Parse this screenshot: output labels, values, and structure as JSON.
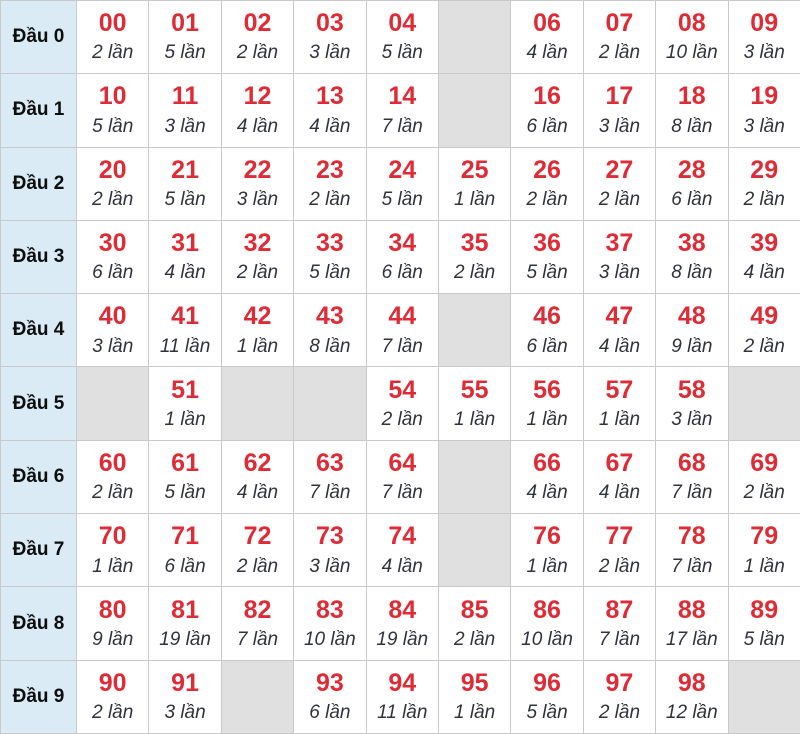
{
  "chart_data": {
    "type": "table",
    "description": "Lottery head-digit frequency table (Dau 0 - Dau 9), each cell shows a two-digit number and how many times it occurred",
    "row_header_prefix": "Đầu",
    "unit": "lần",
    "colors": {
      "number_red": "#df2b35",
      "count_text": "#30333b",
      "label_bg": "#daebf5",
      "empty_bg": "#e0e0e0",
      "border": "#c9c9c9"
    },
    "rows": [
      {
        "label": "Đầu 0",
        "cells": [
          {
            "number": "00",
            "count": 2,
            "text": "2 lần"
          },
          {
            "number": "01",
            "count": 5,
            "text": "5 lần"
          },
          {
            "number": "02",
            "count": 2,
            "text": "2 lần"
          },
          {
            "number": "03",
            "count": 3,
            "text": "3 lần"
          },
          {
            "number": "04",
            "count": 5,
            "text": "5 lần"
          },
          null,
          {
            "number": "06",
            "count": 4,
            "text": "4 lần"
          },
          {
            "number": "07",
            "count": 2,
            "text": "2 lần"
          },
          {
            "number": "08",
            "count": 10,
            "text": "10 lần"
          },
          {
            "number": "09",
            "count": 3,
            "text": "3 lần"
          }
        ]
      },
      {
        "label": "Đầu 1",
        "cells": [
          {
            "number": "10",
            "count": 5,
            "text": "5 lần"
          },
          {
            "number": "11",
            "count": 3,
            "text": "3 lần"
          },
          {
            "number": "12",
            "count": 4,
            "text": "4 lần"
          },
          {
            "number": "13",
            "count": 4,
            "text": "4 lần"
          },
          {
            "number": "14",
            "count": 7,
            "text": "7 lần"
          },
          null,
          {
            "number": "16",
            "count": 6,
            "text": "6 lần"
          },
          {
            "number": "17",
            "count": 3,
            "text": "3 lần"
          },
          {
            "number": "18",
            "count": 8,
            "text": "8 lần"
          },
          {
            "number": "19",
            "count": 3,
            "text": "3 lần"
          }
        ]
      },
      {
        "label": "Đầu 2",
        "cells": [
          {
            "number": "20",
            "count": 2,
            "text": "2 lần"
          },
          {
            "number": "21",
            "count": 5,
            "text": "5 lần"
          },
          {
            "number": "22",
            "count": 3,
            "text": "3 lần"
          },
          {
            "number": "23",
            "count": 2,
            "text": "2 lần"
          },
          {
            "number": "24",
            "count": 5,
            "text": "5 lần"
          },
          {
            "number": "25",
            "count": 1,
            "text": "1 lần"
          },
          {
            "number": "26",
            "count": 2,
            "text": "2 lần"
          },
          {
            "number": "27",
            "count": 2,
            "text": "2 lần"
          },
          {
            "number": "28",
            "count": 6,
            "text": "6 lần"
          },
          {
            "number": "29",
            "count": 2,
            "text": "2 lần"
          }
        ]
      },
      {
        "label": "Đầu 3",
        "cells": [
          {
            "number": "30",
            "count": 6,
            "text": "6 lần"
          },
          {
            "number": "31",
            "count": 4,
            "text": "4 lần"
          },
          {
            "number": "32",
            "count": 2,
            "text": "2 lần"
          },
          {
            "number": "33",
            "count": 5,
            "text": "5 lần"
          },
          {
            "number": "34",
            "count": 6,
            "text": "6 lần"
          },
          {
            "number": "35",
            "count": 2,
            "text": "2 lần"
          },
          {
            "number": "36",
            "count": 5,
            "text": "5 lần"
          },
          {
            "number": "37",
            "count": 3,
            "text": "3 lần"
          },
          {
            "number": "38",
            "count": 8,
            "text": "8 lần"
          },
          {
            "number": "39",
            "count": 4,
            "text": "4 lần"
          }
        ]
      },
      {
        "label": "Đầu 4",
        "cells": [
          {
            "number": "40",
            "count": 3,
            "text": "3 lần"
          },
          {
            "number": "41",
            "count": 11,
            "text": "11 lần"
          },
          {
            "number": "42",
            "count": 1,
            "text": "1 lần"
          },
          {
            "number": "43",
            "count": 8,
            "text": "8 lần"
          },
          {
            "number": "44",
            "count": 7,
            "text": "7 lần"
          },
          null,
          {
            "number": "46",
            "count": 6,
            "text": "6 lần"
          },
          {
            "number": "47",
            "count": 4,
            "text": "4 lần"
          },
          {
            "number": "48",
            "count": 9,
            "text": "9 lần"
          },
          {
            "number": "49",
            "count": 2,
            "text": "2 lần"
          }
        ]
      },
      {
        "label": "Đầu 5",
        "cells": [
          null,
          {
            "number": "51",
            "count": 1,
            "text": "1 lần"
          },
          null,
          null,
          {
            "number": "54",
            "count": 2,
            "text": "2 lần"
          },
          {
            "number": "55",
            "count": 1,
            "text": "1 lần"
          },
          {
            "number": "56",
            "count": 1,
            "text": "1 lần"
          },
          {
            "number": "57",
            "count": 1,
            "text": "1 lần"
          },
          {
            "number": "58",
            "count": 3,
            "text": "3 lần"
          },
          null
        ]
      },
      {
        "label": "Đầu 6",
        "cells": [
          {
            "number": "60",
            "count": 2,
            "text": "2 lần"
          },
          {
            "number": "61",
            "count": 5,
            "text": "5 lần"
          },
          {
            "number": "62",
            "count": 4,
            "text": "4 lần"
          },
          {
            "number": "63",
            "count": 7,
            "text": "7 lần"
          },
          {
            "number": "64",
            "count": 7,
            "text": "7 lần"
          },
          null,
          {
            "number": "66",
            "count": 4,
            "text": "4 lần"
          },
          {
            "number": "67",
            "count": 4,
            "text": "4 lần"
          },
          {
            "number": "68",
            "count": 7,
            "text": "7 lần"
          },
          {
            "number": "69",
            "count": 2,
            "text": "2 lần"
          }
        ]
      },
      {
        "label": "Đầu 7",
        "cells": [
          {
            "number": "70",
            "count": 1,
            "text": "1 lần"
          },
          {
            "number": "71",
            "count": 6,
            "text": "6 lần"
          },
          {
            "number": "72",
            "count": 2,
            "text": "2 lần"
          },
          {
            "number": "73",
            "count": 3,
            "text": "3 lần"
          },
          {
            "number": "74",
            "count": 4,
            "text": "4 lần"
          },
          null,
          {
            "number": "76",
            "count": 1,
            "text": "1 lần"
          },
          {
            "number": "77",
            "count": 2,
            "text": "2 lần"
          },
          {
            "number": "78",
            "count": 7,
            "text": "7 lần"
          },
          {
            "number": "79",
            "count": 1,
            "text": "1 lần"
          }
        ]
      },
      {
        "label": "Đầu 8",
        "cells": [
          {
            "number": "80",
            "count": 9,
            "text": "9 lần"
          },
          {
            "number": "81",
            "count": 19,
            "text": "19 lần"
          },
          {
            "number": "82",
            "count": 7,
            "text": "7 lần"
          },
          {
            "number": "83",
            "count": 10,
            "text": "10 lần"
          },
          {
            "number": "84",
            "count": 19,
            "text": "19 lần"
          },
          {
            "number": "85",
            "count": 2,
            "text": "2 lần"
          },
          {
            "number": "86",
            "count": 10,
            "text": "10 lần"
          },
          {
            "number": "87",
            "count": 7,
            "text": "7 lần"
          },
          {
            "number": "88",
            "count": 17,
            "text": "17 lần"
          },
          {
            "number": "89",
            "count": 5,
            "text": "5 lần"
          }
        ]
      },
      {
        "label": "Đầu 9",
        "cells": [
          {
            "number": "90",
            "count": 2,
            "text": "2 lần"
          },
          {
            "number": "91",
            "count": 3,
            "text": "3 lần"
          },
          null,
          {
            "number": "93",
            "count": 6,
            "text": "6 lần"
          },
          {
            "number": "94",
            "count": 11,
            "text": "11 lần"
          },
          {
            "number": "95",
            "count": 1,
            "text": "1 lần"
          },
          {
            "number": "96",
            "count": 5,
            "text": "5 lần"
          },
          {
            "number": "97",
            "count": 2,
            "text": "2 lần"
          },
          {
            "number": "98",
            "count": 12,
            "text": "12 lần"
          },
          null
        ]
      }
    ]
  }
}
